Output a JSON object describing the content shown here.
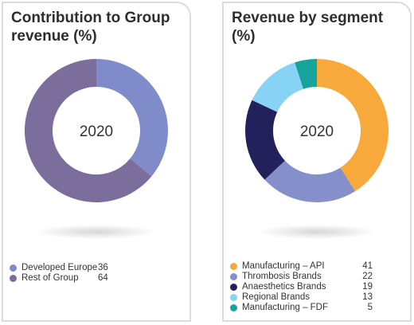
{
  "chart_data": [
    {
      "type": "pie",
      "title": "Contribution to Group revenue (%)",
      "center_label": "2020",
      "slices": [
        {
          "label": "Developed Europe",
          "value": 36,
          "color": "#7f8cc9"
        },
        {
          "label": "Rest of Group",
          "value": 64,
          "color": "#7c6e9c"
        }
      ],
      "legend_position": "bottom-left"
    },
    {
      "type": "pie",
      "title": "Revenue by segment (%)",
      "center_label": "2020",
      "slices": [
        {
          "label": "Manufacturing – API",
          "value": 41,
          "color": "#f7a93b"
        },
        {
          "label": "Thrombosis Brands",
          "value": 22,
          "color": "#8590cb"
        },
        {
          "label": "Anaesthetics Brands",
          "value": 19,
          "color": "#23215b"
        },
        {
          "label": "Regional Brands",
          "value": 13,
          "color": "#87d3f5"
        },
        {
          "label": "Manufacturing – FDF",
          "value": 5,
          "color": "#15a39b"
        }
      ],
      "legend_position": "bottom-left"
    }
  ]
}
